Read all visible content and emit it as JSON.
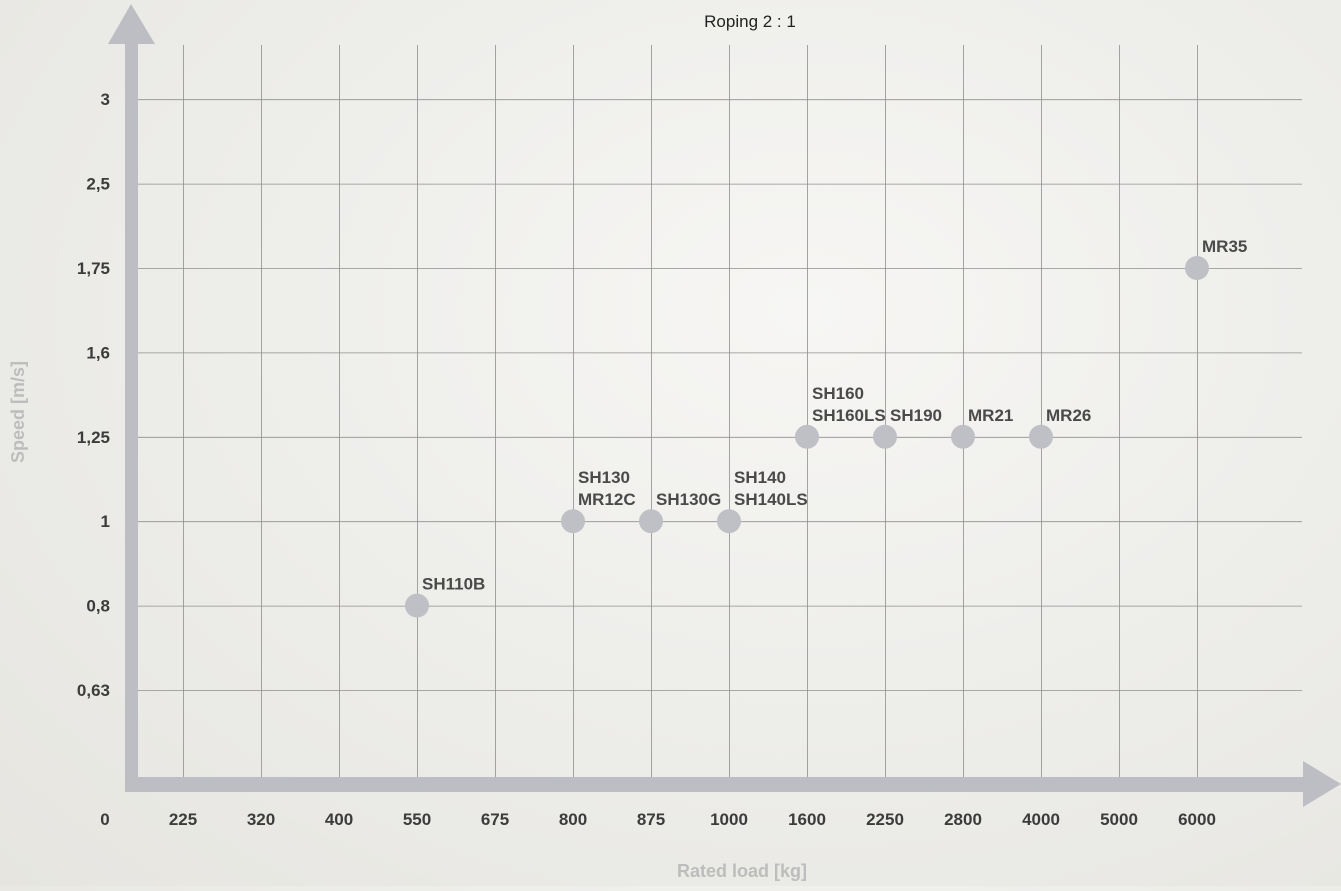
{
  "chart_data": {
    "type": "scatter",
    "title": "Roping 2 : 1",
    "xlabel": "Rated load [kg]",
    "ylabel": "Speed [m/s]",
    "x_categories": [
      "0",
      "225",
      "320",
      "400",
      "550",
      "675",
      "800",
      "875",
      "1000",
      "1600",
      "2250",
      "2800",
      "4000",
      "5000",
      "6000"
    ],
    "y_categories": [
      "0,63",
      "0,8",
      "1",
      "1,25",
      "1,6",
      "1,75",
      "2,5",
      "3"
    ],
    "grid": true,
    "points": [
      {
        "x": "550",
        "y": "0,8",
        "label": [
          "SH110B"
        ]
      },
      {
        "x": "800",
        "y": "1",
        "label": [
          "SH130",
          "MR12C"
        ]
      },
      {
        "x": "875",
        "y": "1",
        "label": [
          "SH130G"
        ]
      },
      {
        "x": "1000",
        "y": "1",
        "label": [
          "SH140",
          "SH140LS"
        ]
      },
      {
        "x": "1600",
        "y": "1,25",
        "label": [
          "SH160",
          "SH160LS"
        ]
      },
      {
        "x": "2250",
        "y": "1,25",
        "label": [
          "SH190"
        ]
      },
      {
        "x": "2800",
        "y": "1,25",
        "label": [
          "MR21"
        ]
      },
      {
        "x": "4000",
        "y": "1,25",
        "label": [
          "MR26"
        ]
      },
      {
        "x": "6000",
        "y": "1,75",
        "label": [
          "MR35"
        ]
      }
    ]
  },
  "colors": {
    "axis": "#bdbec3",
    "grid": "#8f8f8f",
    "point": "#bfc0c5",
    "tick_text": "#3c3c3c",
    "label_text": "#4a4a4a",
    "axis_title": "#bdbdbd",
    "title_text": "#222222"
  }
}
